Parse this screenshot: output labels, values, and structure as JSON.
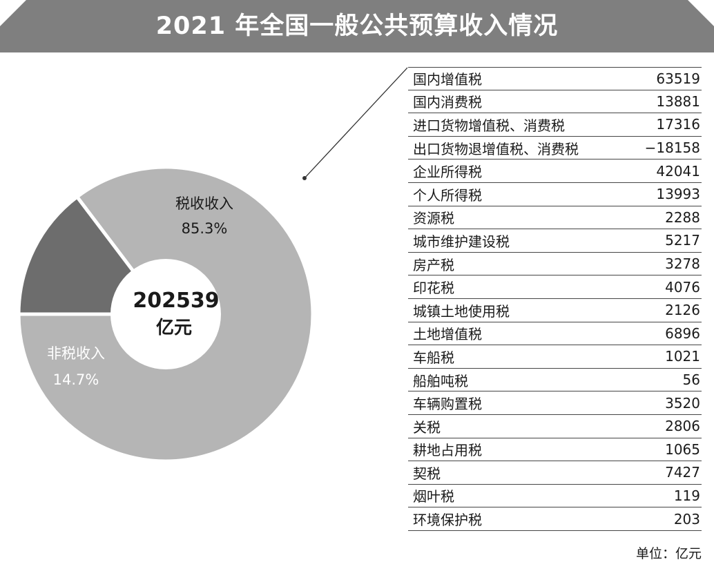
{
  "title": "2021 年全国一般公共预算收入情况",
  "colors": {
    "banner": "#7f7f7f",
    "tax_slice": "#b5b5b5",
    "nontax_slice": "#6d6d6d",
    "center": "#ffffff"
  },
  "chart_data": {
    "type": "pie",
    "donut": true,
    "center_value": "202539",
    "center_unit": "亿元",
    "slices": [
      {
        "label": "税收收入",
        "percent_label": "85.3%",
        "value": 85.3
      },
      {
        "label": "非税收入",
        "percent_label": "14.7%",
        "value": 14.7
      }
    ]
  },
  "table": {
    "rows": [
      {
        "name": "国内增值税",
        "value": "63519"
      },
      {
        "name": "国内消费税",
        "value": "13881"
      },
      {
        "name": "进口货物增值税、消费税",
        "value": "17316"
      },
      {
        "name": "出口货物退增值税、消费税",
        "value": "−18158"
      },
      {
        "name": "企业所得税",
        "value": "42041"
      },
      {
        "name": "个人所得税",
        "value": "13993"
      },
      {
        "name": "资源税",
        "value": "2288"
      },
      {
        "name": "城市维护建设税",
        "value": "5217"
      },
      {
        "name": "房产税",
        "value": "3278"
      },
      {
        "name": "印花税",
        "value": "4076"
      },
      {
        "name": "城镇土地使用税",
        "value": "2126"
      },
      {
        "name": "土地增值税",
        "value": "6896"
      },
      {
        "name": "车船税",
        "value": "1021"
      },
      {
        "name": "船舶吨税",
        "value": "56"
      },
      {
        "name": "车辆购置税",
        "value": "3520"
      },
      {
        "name": "关税",
        "value": "2806"
      },
      {
        "name": "耕地占用税",
        "value": "1065"
      },
      {
        "name": "契税",
        "value": "7427"
      },
      {
        "name": "烟叶税",
        "value": "119"
      },
      {
        "name": "环境保护税",
        "value": "203"
      }
    ],
    "unit": "单位：亿元"
  }
}
